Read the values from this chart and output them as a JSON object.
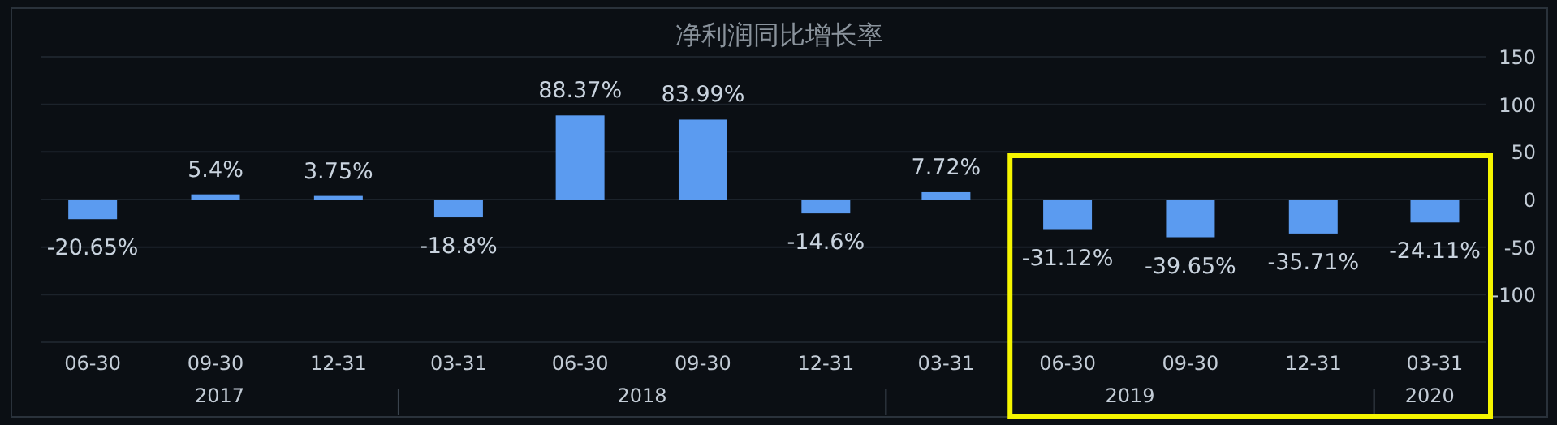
{
  "chart_data": {
    "type": "bar",
    "title": "净利润同比增长率",
    "x": [
      "2017-06-30",
      "2017-09-30",
      "2017-12-31",
      "2018-03-31",
      "2018-06-30",
      "2018-09-30",
      "2018-12-31",
      "2019-03-31",
      "2019-06-30",
      "2019-09-30",
      "2019-12-31",
      "2020-03-31"
    ],
    "xlim": [
      "2017-05-22",
      "2020-05-08"
    ],
    "xticks": [
      {
        "value": "2017-06-30",
        "label": "06-30"
      },
      {
        "value": "2017-09-30",
        "label": "09-30"
      },
      {
        "value": "2017-12-31",
        "label": "12-31"
      },
      {
        "value": "2018-03-31",
        "label": "03-31"
      },
      {
        "value": "2018-06-30",
        "label": "06-30"
      },
      {
        "value": "2018-09-30",
        "label": "09-30"
      },
      {
        "value": "2018-12-31",
        "label": "12-31"
      },
      {
        "value": "2019-03-31",
        "label": "03-31"
      },
      {
        "value": "2019-06-30",
        "label": "06-30"
      },
      {
        "value": "2019-09-30",
        "label": "09-30"
      },
      {
        "value": "2019-12-31",
        "label": "12-31"
      },
      {
        "value": "2020-03-31",
        "label": "03-31"
      }
    ],
    "values": [
      -20.65,
      5.4,
      3.75,
      -18.8,
      88.37,
      83.99,
      -14.6,
      7.72,
      -31.12,
      -39.65,
      -35.71,
      -24.11
    ],
    "value_labels": [
      "-20.65%",
      "5.4%",
      "3.75%",
      "-18.8%",
      "88.37%",
      "83.99%",
      "-14.6%",
      "7.72%",
      "-31.12%",
      "-39.65%",
      "-35.71%",
      "-24.11%"
    ],
    "color": "#5b9bf0",
    "ylim": [
      -150,
      150
    ],
    "yticks": [
      {
        "value": -150,
        "label": null
      },
      -100,
      -50,
      0,
      50,
      100,
      150
    ],
    "grid": "y",
    "annotations": [
      "2017",
      "2018",
      "2019",
      "2020"
    ]
  }
}
